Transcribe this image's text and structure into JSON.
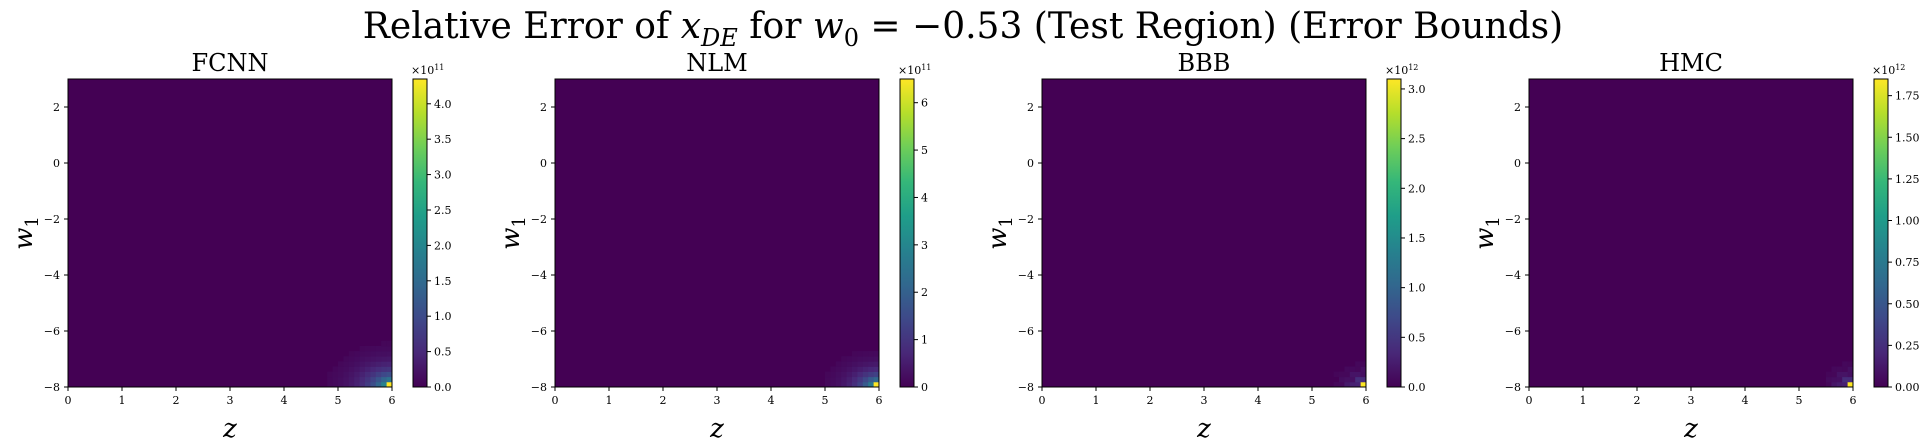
{
  "figure": {
    "title_main": "Relative Error of ",
    "title_var": "x",
    "title_var_sub": "DE",
    "title_mid": " for ",
    "title_param": "w",
    "title_param_sub": "0",
    "title_value": " = −0.53 (Test Region) (Error Bounds)"
  },
  "chart_data": [
    {
      "type": "heatmap",
      "title": "FCNN",
      "xlabel": "z",
      "ylabel": "w",
      "ylabel_sub": "1",
      "xlim": [
        0,
        6
      ],
      "ylim": [
        -8,
        3
      ],
      "xticks": [
        "0",
        "1",
        "2",
        "3",
        "4",
        "5",
        "6"
      ],
      "yticks": [
        "2",
        "0",
        "−2",
        "−4",
        "−6",
        "−8"
      ],
      "colorbar": {
        "multiplier": "×10",
        "exponent": "11",
        "max": 4.35,
        "ticks": [
          "0.0",
          "0.5",
          "1.0",
          "1.5",
          "2.0",
          "2.5",
          "3.0",
          "3.5",
          "4.0"
        ],
        "tick_values": [
          0,
          0.5,
          1.0,
          1.5,
          2.0,
          2.5,
          3.0,
          3.5,
          4.0
        ]
      },
      "hotspot": {
        "z": 6,
        "w1": -8,
        "peak": 4.35,
        "spread": "smooth",
        "radius_z": 1.0,
        "radius_w": 1.3
      }
    },
    {
      "type": "heatmap",
      "title": "NLM",
      "xlabel": "z",
      "ylabel": "w",
      "ylabel_sub": "1",
      "xlim": [
        0,
        6
      ],
      "ylim": [
        -8,
        3
      ],
      "xticks": [
        "0",
        "1",
        "2",
        "3",
        "4",
        "5",
        "6"
      ],
      "yticks": [
        "2",
        "0",
        "−2",
        "−4",
        "−6",
        "−8"
      ],
      "colorbar": {
        "multiplier": "×10",
        "exponent": "11",
        "max": 6.5,
        "ticks": [
          "0",
          "1",
          "2",
          "3",
          "4",
          "5",
          "6"
        ],
        "tick_values": [
          0,
          1,
          2,
          3,
          4,
          5,
          6
        ]
      },
      "hotspot": {
        "z": 6,
        "w1": -8,
        "peak": 6.5,
        "spread": "smooth",
        "radius_z": 0.85,
        "radius_w": 1.1
      }
    },
    {
      "type": "heatmap",
      "title": "BBB",
      "xlabel": "z",
      "ylabel": "w",
      "ylabel_sub": "1",
      "xlim": [
        0,
        6
      ],
      "ylim": [
        -8,
        3
      ],
      "xticks": [
        "0",
        "1",
        "2",
        "3",
        "4",
        "5",
        "6"
      ],
      "yticks": [
        "2",
        "0",
        "−2",
        "−4",
        "−6",
        "−8"
      ],
      "colorbar": {
        "multiplier": "×10",
        "exponent": "12",
        "max": 3.1,
        "ticks": [
          "0.0",
          "0.5",
          "1.0",
          "1.5",
          "2.0",
          "2.5",
          "3.0"
        ],
        "tick_values": [
          0,
          0.5,
          1.0,
          1.5,
          2.0,
          2.5,
          3.0
        ]
      },
      "hotspot": {
        "z": 6,
        "w1": -8,
        "peak": 3.1,
        "spread": "pixelated",
        "radius_z": 0.6,
        "radius_w": 0.9
      }
    },
    {
      "type": "heatmap",
      "title": "HMC",
      "xlabel": "z",
      "ylabel": "w",
      "ylabel_sub": "1",
      "xlim": [
        0,
        6
      ],
      "ylim": [
        -8,
        3
      ],
      "xticks": [
        "0",
        "1",
        "2",
        "3",
        "4",
        "5",
        "6"
      ],
      "yticks": [
        "2",
        "0",
        "−2",
        "−4",
        "−6",
        "−8"
      ],
      "colorbar": {
        "multiplier": "×10",
        "exponent": "12",
        "max": 1.85,
        "ticks": [
          "0.00",
          "0.25",
          "0.50",
          "0.75",
          "1.00",
          "1.25",
          "1.50",
          "1.75"
        ],
        "tick_values": [
          0,
          0.25,
          0.5,
          0.75,
          1.0,
          1.25,
          1.5,
          1.75
        ]
      },
      "hotspot": {
        "z": 6,
        "w1": -8,
        "peak": 1.85,
        "spread": "pixelated",
        "radius_z": 0.55,
        "radius_w": 0.9
      }
    }
  ],
  "colors": {
    "viridis": [
      "#440154",
      "#482878",
      "#3e4989",
      "#31688e",
      "#26828e",
      "#1f9e89",
      "#35b779",
      "#6ece58",
      "#b5de2b",
      "#fde725"
    ]
  }
}
